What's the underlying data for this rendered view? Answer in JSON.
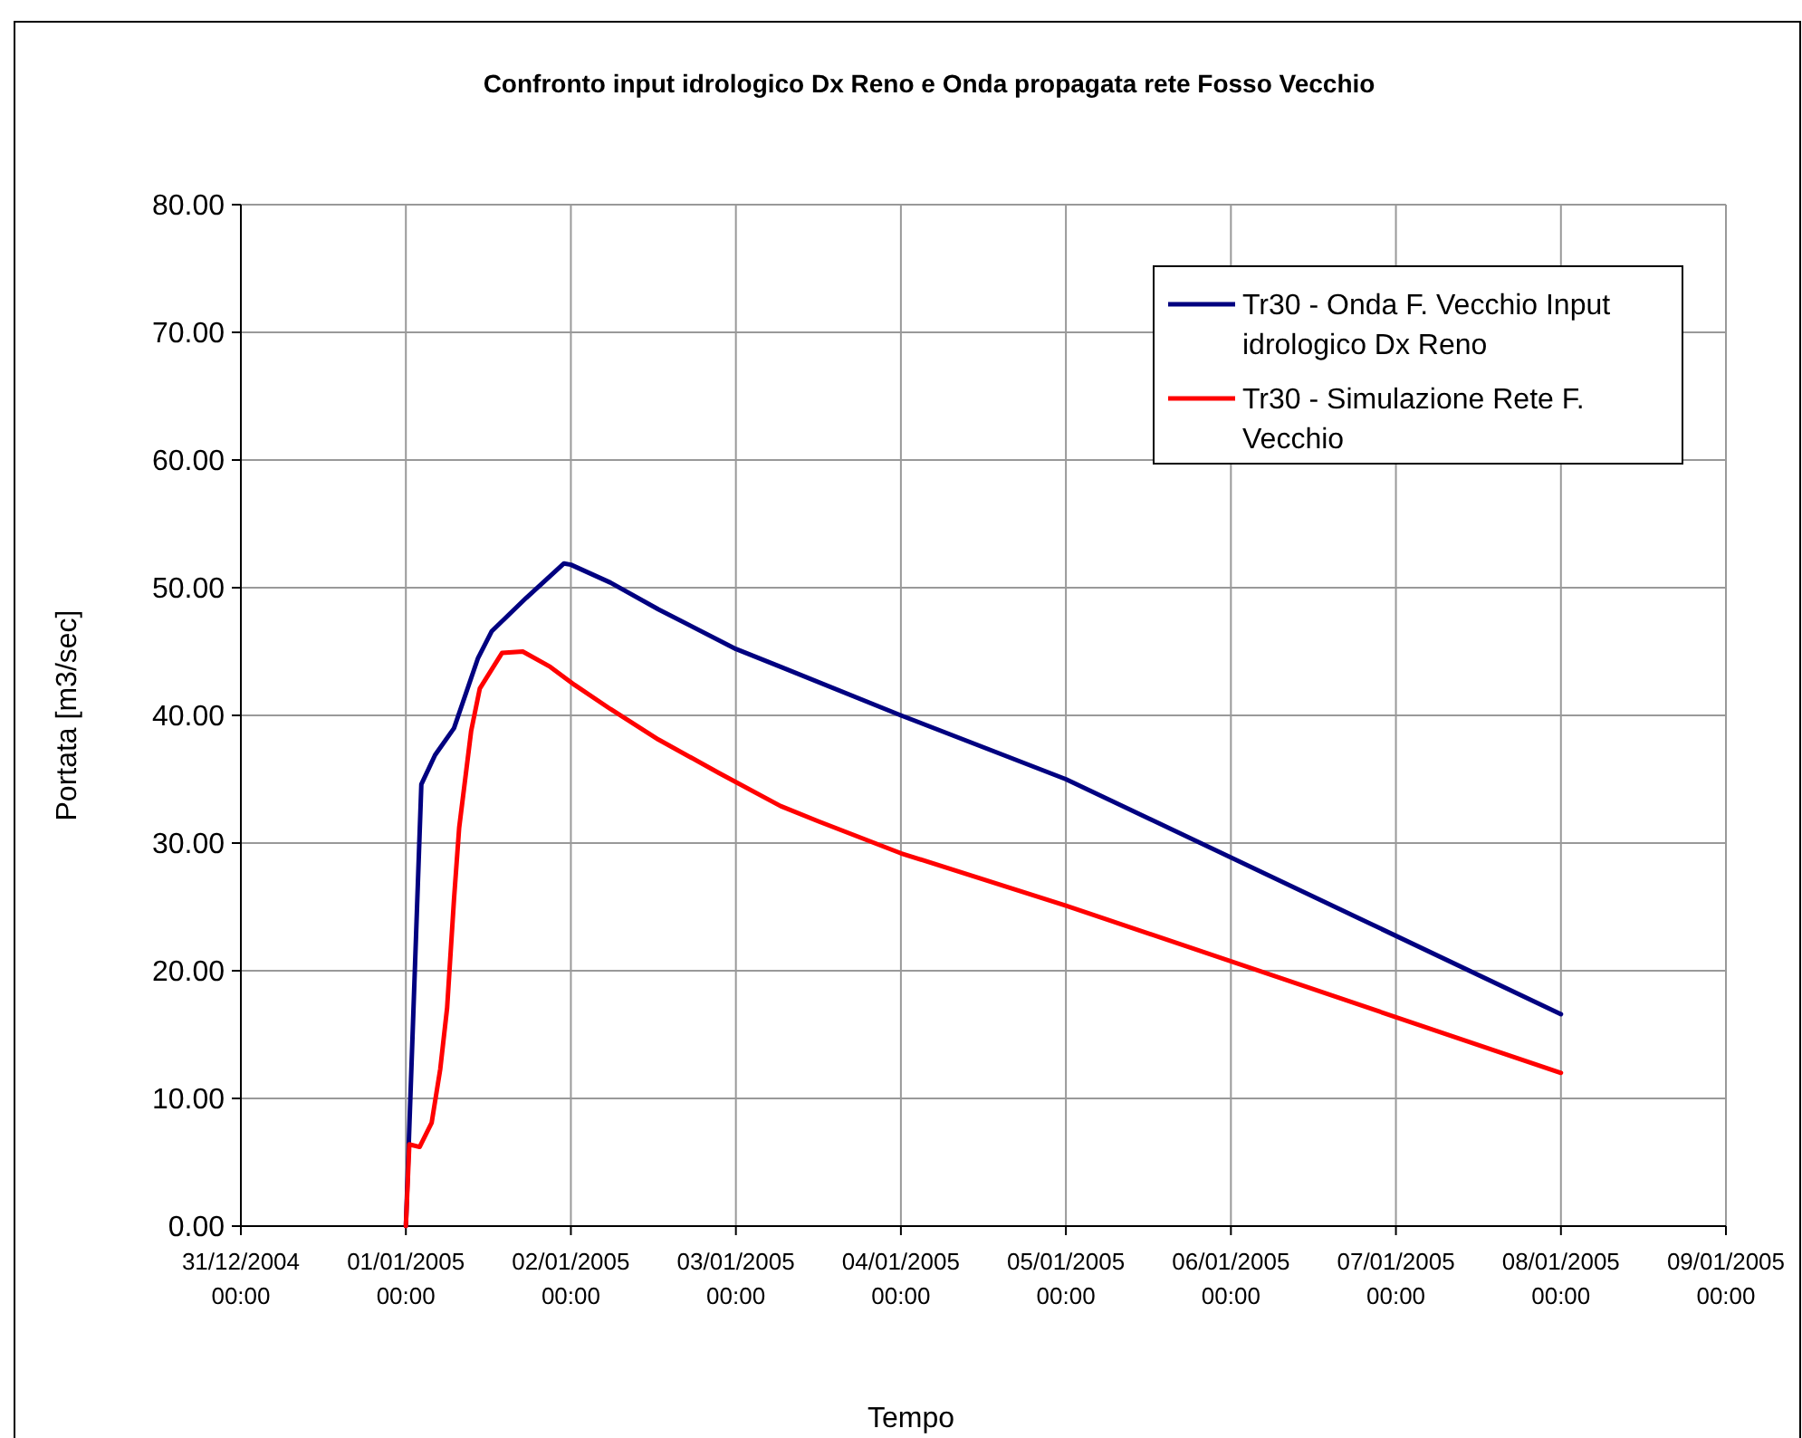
{
  "chart_data": {
    "type": "line",
    "title": "Confronto input idrologico Dx Reno e Onda propagata rete Fosso Vecchio",
    "xlabel": "Tempo",
    "ylabel": "Portata [m3/sec]",
    "xlim": [
      "2004-12-31T00:00",
      "2005-01-09T00:00"
    ],
    "xticks": [
      {
        "value": "2004-12-31T00:00",
        "label": "31/12/2004 00:00"
      },
      {
        "value": "2005-01-01T00:00",
        "label": "01/01/2005 00:00"
      },
      {
        "value": "2005-01-02T00:00",
        "label": "02/01/2005 00:00"
      },
      {
        "value": "2005-01-03T00:00",
        "label": "03/01/2005 00:00"
      },
      {
        "value": "2005-01-04T00:00",
        "label": "04/01/2005 00:00"
      },
      {
        "value": "2005-01-05T00:00",
        "label": "05/01/2005 00:00"
      },
      {
        "value": "2005-01-06T00:00",
        "label": "06/01/2005 00:00"
      },
      {
        "value": "2005-01-07T00:00",
        "label": "07/01/2005 00:00"
      },
      {
        "value": "2005-01-08T00:00",
        "label": "08/01/2005 00:00"
      },
      {
        "value": "2005-01-09T00:00",
        "label": "09/01/2005 00:00"
      }
    ],
    "ylim": [
      0,
      80
    ],
    "yticks": [
      {
        "value": 0,
        "label": "0.00"
      },
      {
        "value": 10,
        "label": "10.00"
      },
      {
        "value": 20,
        "label": "20.00"
      },
      {
        "value": 30,
        "label": "30.00"
      },
      {
        "value": 40,
        "label": "40.00"
      },
      {
        "value": 50,
        "label": "50.00"
      },
      {
        "value": 60,
        "label": "60.00"
      },
      {
        "value": 70,
        "label": "70.00"
      },
      {
        "value": 80,
        "label": "80.00"
      }
    ],
    "grid": true,
    "legend": "top right",
    "marker": "none",
    "line_style": "solid",
    "series": [
      {
        "name": "Tr30 - Onda F. Vecchio Input idrologico Dx Reno",
        "color": "#000080",
        "x": [
          "2005-01-01T00:00",
          "2005-01-01T02:15",
          "2005-01-01T04:15",
          "2005-01-01T07:00",
          "2005-01-01T10:30",
          "2005-01-01T12:30",
          "2005-01-01T17:30",
          "2005-01-01T23:00",
          "2005-01-02T00:00",
          "2005-01-02T05:45",
          "2005-01-02T12:45",
          "2005-01-03T00:00",
          "2005-01-03T06:30",
          "2005-01-04T00:00",
          "2005-01-05T00:00",
          "2005-01-08T00:00"
        ],
        "values": [
          0,
          34.6,
          36.9,
          39.0,
          44.5,
          46.6,
          49.2,
          51.9,
          51.8,
          50.4,
          48.3,
          45.2,
          43.8,
          40.0,
          35.0,
          16.6
        ]
      },
      {
        "name": "Tr30 - Simulazione Rete F. Vecchio",
        "color": "#ff0000",
        "x": [
          "2005-01-01T00:00",
          "2005-01-01T00:30",
          "2005-01-01T02:00",
          "2005-01-01T03:45",
          "2005-01-01T05:00",
          "2005-01-01T06:00",
          "2005-01-01T07:00",
          "2005-01-01T07:45",
          "2005-01-01T09:30",
          "2005-01-01T10:45",
          "2005-01-01T14:00",
          "2005-01-01T17:00",
          "2005-01-01T21:00",
          "2005-01-02T00:30",
          "2005-01-02T05:45",
          "2005-01-02T12:45",
          "2005-01-02T21:30",
          "2005-01-03T06:30",
          "2005-01-03T12:00",
          "2005-01-04T00:00",
          "2005-01-05T00:00",
          "2005-01-08T00:00"
        ],
        "values": [
          0,
          6.4,
          6.2,
          8.1,
          12.3,
          17.1,
          25.6,
          31.2,
          38.8,
          42.1,
          44.9,
          45.0,
          43.8,
          42.4,
          40.5,
          38.1,
          35.5,
          32.9,
          31.7,
          29.2,
          25.1,
          12.0
        ]
      }
    ]
  }
}
